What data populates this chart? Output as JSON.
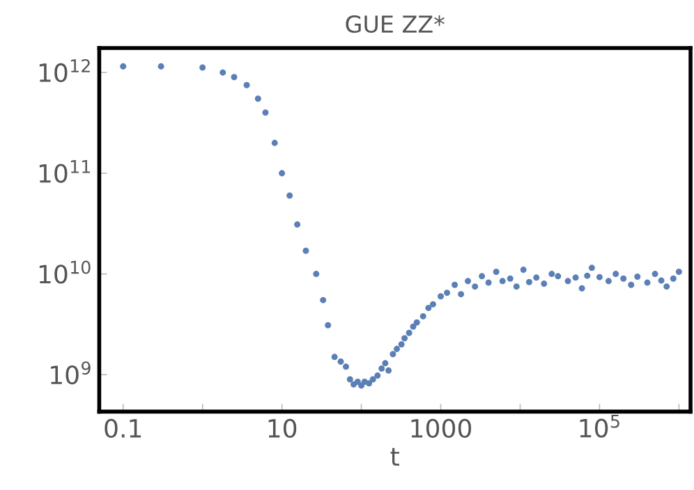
{
  "chart_data": {
    "type": "scatter",
    "title": "GUE ZZ*",
    "xlabel": "t",
    "log": "xy",
    "marker": "circle",
    "grid": false,
    "legend": false,
    "xlim": [
      0.05,
      1400000
    ],
    "ylim": [
      430000000,
      1750000000000
    ],
    "xticks": [
      0.1,
      {
        "value": 1,
        "label": null
      },
      10,
      {
        "value": 100,
        "label": null
      },
      1000,
      {
        "value": 10000,
        "label": null
      },
      {
        "value": 100000,
        "label": "10$^{5}$"
      },
      {
        "value": 1000000,
        "label": null
      }
    ],
    "yticks": [
      {
        "value": 1000000000,
        "label": "10$^{9}$"
      },
      {
        "value": 10000000000,
        "label": "10$^{10}$"
      },
      {
        "value": 100000000000,
        "label": "10$^{11}$"
      },
      {
        "value": 1000000000000,
        "label": "10$^{12}$"
      }
    ],
    "series": [
      {
        "color": "#5b7fb8",
        "x": [
          0.1,
          0.3,
          1,
          1.8,
          2.5,
          3.6,
          5,
          6.2,
          8.1,
          10,
          12.5,
          15.6,
          20,
          27,
          33,
          38,
          46,
          55,
          64,
          72,
          80,
          90,
          100,
          110,
          125,
          140,
          160,
          180,
          200,
          220,
          250,
          280,
          320,
          350,
          400,
          450,
          500,
          600,
          700,
          800,
          1000,
          1200,
          1500,
          1800,
          2200,
          2700,
          3300,
          4000,
          5000,
          6000,
          7500,
          9000,
          11000,
          13000,
          16000,
          20000,
          25000,
          30000,
          40000,
          50000,
          60000,
          70000,
          80000,
          100000,
          130000,
          160000,
          200000,
          250000,
          300000,
          400000,
          500000,
          600000,
          700000,
          850000,
          1000000
        ],
        "values": [
          1150000000000.0,
          1150000000000.0,
          1120000000000.0,
          1000000000000.0,
          900000000000.0,
          750000000000.0,
          550000000000.0,
          400000000000.0,
          200000000000.0,
          100000000000.0,
          60000000000.0,
          31000000000.0,
          17000000000.0,
          10000000000.0,
          5500000000.0,
          3100000000.0,
          1500000000.0,
          1350000000.0,
          1200000000.0,
          900000000.0,
          800000000.0,
          850000000.0,
          780000000.0,
          850000000.0,
          820000000.0,
          900000000.0,
          980000000.0,
          1150000000.0,
          1300000000.0,
          1100000000.0,
          1600000000.0,
          1800000000.0,
          2000000000.0,
          2300000000.0,
          2600000000.0,
          3000000000.0,
          3300000000.0,
          3800000000.0,
          4600000000.0,
          5000000000.0,
          6000000000.0,
          6500000000.0,
          7800000000.0,
          6300000000.0,
          8500000000.0,
          7500000000.0,
          9500000000.0,
          8200000000.0,
          10500000000.0,
          8500000000.0,
          9000000000.0,
          7500000000.0,
          11000000000.0,
          8300000000.0,
          9200000000.0,
          8000000000.0,
          10000000000.0,
          9500000000.0,
          8500000000.0,
          9200000000.0,
          7200000000.0,
          9600000000.0,
          11500000000.0,
          9300000000.0,
          8500000000.0,
          10000000000.0,
          9000000000.0,
          7800000000.0,
          9400000000.0,
          8200000000.0,
          10000000000.0,
          8600000000.0,
          7500000000.0,
          9000000000.0,
          10500000000.0
        ]
      }
    ]
  }
}
